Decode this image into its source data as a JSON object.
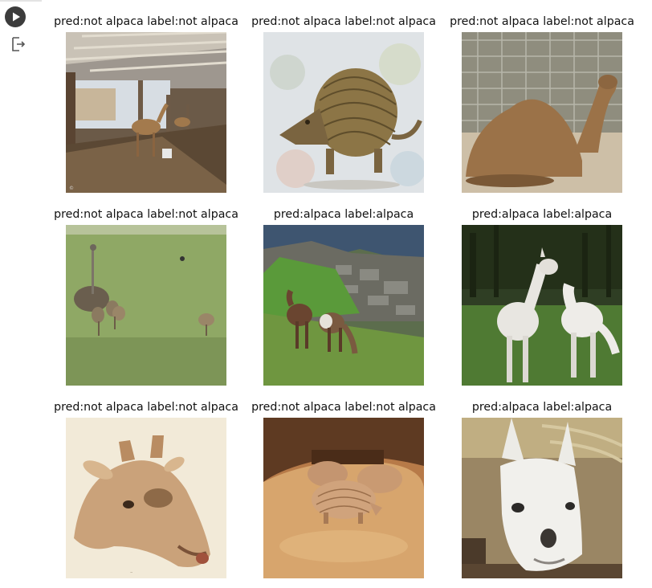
{
  "notebook": {
    "run_icon": "play-icon",
    "output_icon": "output-icon"
  },
  "grid": [
    {
      "caption": "pred:not alpaca label:not alpaca",
      "scene": "camel-barn"
    },
    {
      "caption": "pred:not alpaca label:not alpaca",
      "scene": "armadillo-figurine"
    },
    {
      "caption": "pred:not alpaca label:not alpaca",
      "scene": "camel-resting"
    },
    {
      "caption": "pred:not alpaca label:not alpaca",
      "scene": "ostriches"
    },
    {
      "caption": "pred:alpaca label:alpaca",
      "scene": "machu-picchu-llamas"
    },
    {
      "caption": "pred:alpaca label:alpaca",
      "scene": "white-alpacas"
    },
    {
      "caption": "pred:not alpaca label:not alpaca",
      "scene": "giraffe-drawing"
    },
    {
      "caption": "pred:not alpaca label:not alpaca",
      "scene": "armadillos"
    },
    {
      "caption": "pred:alpaca label:alpaca",
      "scene": "llama-face"
    }
  ]
}
